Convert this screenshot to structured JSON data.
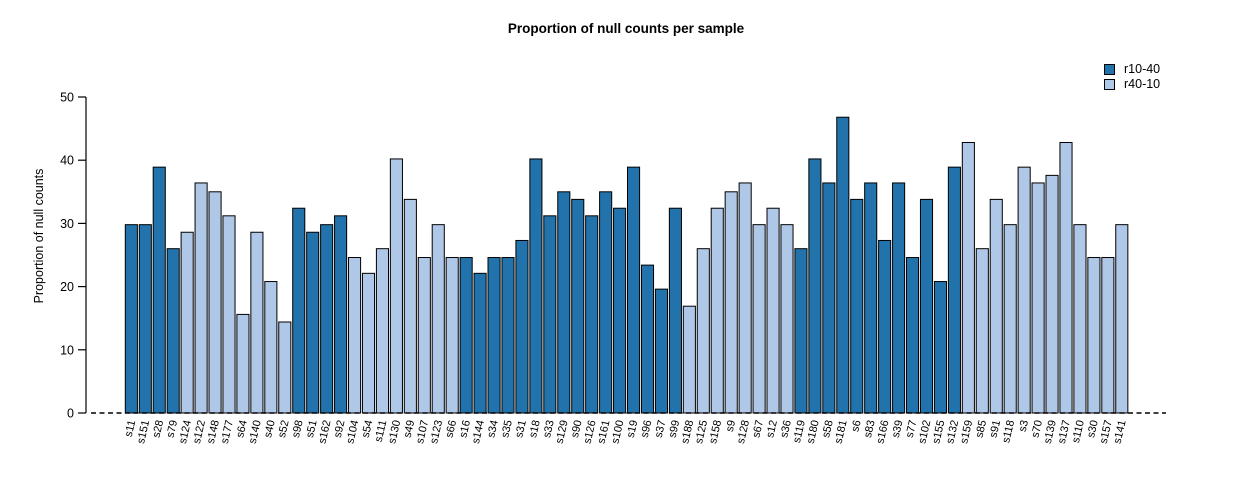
{
  "chart_data": {
    "type": "bar",
    "title": "Proportion of null counts per sample",
    "xlabel": "",
    "ylabel": "Proportion of null counts",
    "ylim": [
      0,
      50
    ],
    "yticks": [
      0,
      10,
      20,
      30,
      40,
      50
    ],
    "grid": false,
    "zero_line": "dashed",
    "legend_position": "top-right",
    "bar_border_color": "#000000",
    "groups": [
      {
        "name": "r10-40",
        "color": "#2273AB"
      },
      {
        "name": "r40-10",
        "color": "#B0C8E8"
      }
    ],
    "categories": [
      "s11",
      "s151",
      "s28",
      "s79",
      "s124",
      "s122",
      "s148",
      "s177",
      "s64",
      "s140",
      "s40",
      "s52",
      "s98",
      "s51",
      "s162",
      "s92",
      "s104",
      "s54",
      "s111",
      "s130",
      "s49",
      "s107",
      "s123",
      "s66",
      "s16",
      "s144",
      "s34",
      "s35",
      "s31",
      "s18",
      "s33",
      "s129",
      "s90",
      "s126",
      "s161",
      "s100",
      "s19",
      "s96",
      "s37",
      "s99",
      "s188",
      "s125",
      "s158",
      "s9",
      "s128",
      "s67",
      "s12",
      "s36",
      "s119",
      "s180",
      "s58",
      "s181",
      "s6",
      "s83",
      "s166",
      "s39",
      "s77",
      "s102",
      "s155",
      "s132",
      "s159",
      "s85",
      "s91",
      "s118",
      "s3",
      "s70",
      "s139",
      "s137",
      "s110",
      "s30",
      "s157",
      "s141"
    ],
    "values": [
      29.8,
      29.8,
      38.9,
      26.0,
      28.6,
      36.4,
      35.0,
      31.2,
      15.6,
      28.6,
      20.8,
      14.4,
      32.4,
      28.6,
      29.8,
      31.2,
      24.6,
      22.1,
      26.0,
      40.2,
      33.8,
      24.6,
      29.8,
      24.6,
      24.6,
      22.1,
      24.6,
      24.6,
      27.3,
      40.2,
      31.2,
      35.0,
      33.8,
      31.2,
      35.0,
      32.4,
      38.9,
      23.4,
      19.6,
      32.4,
      16.9,
      26.0,
      32.4,
      35.0,
      36.4,
      29.8,
      32.4,
      29.8,
      26.0,
      40.2,
      36.4,
      46.8,
      33.8,
      36.4,
      27.3,
      36.4,
      24.6,
      33.8,
      20.8,
      38.9,
      42.8,
      26.0,
      33.8,
      29.8,
      38.9,
      36.4,
      37.6,
      42.8,
      29.8,
      24.6,
      24.6,
      29.8
    ],
    "bar_groups": [
      "r10-40",
      "r10-40",
      "r10-40",
      "r10-40",
      "r40-10",
      "r40-10",
      "r40-10",
      "r40-10",
      "r40-10",
      "r40-10",
      "r40-10",
      "r40-10",
      "r10-40",
      "r10-40",
      "r10-40",
      "r10-40",
      "r40-10",
      "r40-10",
      "r40-10",
      "r40-10",
      "r40-10",
      "r40-10",
      "r40-10",
      "r40-10",
      "r10-40",
      "r10-40",
      "r10-40",
      "r10-40",
      "r10-40",
      "r10-40",
      "r10-40",
      "r10-40",
      "r10-40",
      "r10-40",
      "r10-40",
      "r10-40",
      "r10-40",
      "r10-40",
      "r10-40",
      "r10-40",
      "r40-10",
      "r40-10",
      "r40-10",
      "r40-10",
      "r40-10",
      "r40-10",
      "r40-10",
      "r40-10",
      "r10-40",
      "r10-40",
      "r10-40",
      "r10-40",
      "r10-40",
      "r10-40",
      "r10-40",
      "r10-40",
      "r10-40",
      "r10-40",
      "r10-40",
      "r10-40",
      "r40-10",
      "r40-10",
      "r40-10",
      "r40-10",
      "r40-10",
      "r40-10",
      "r40-10",
      "r40-10",
      "r40-10",
      "r40-10",
      "r40-10",
      "r40-10"
    ]
  }
}
